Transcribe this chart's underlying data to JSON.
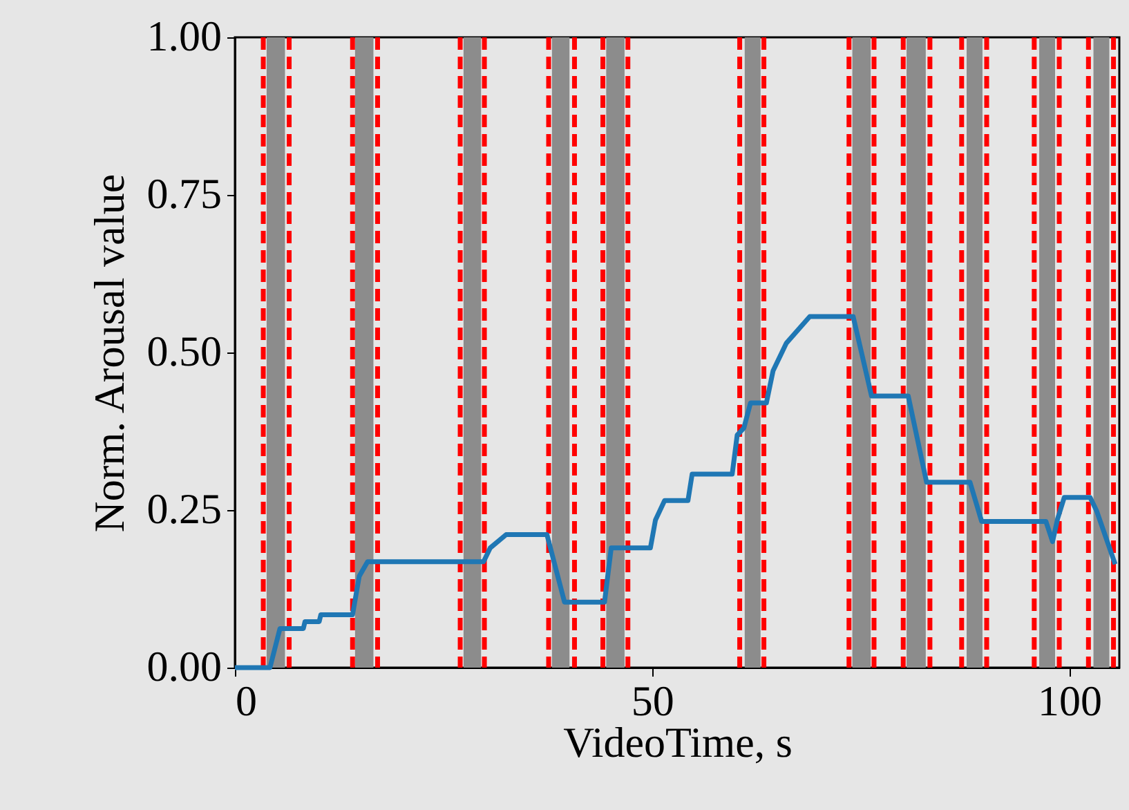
{
  "chart_data": {
    "type": "line",
    "xlabel": "VideoTime, s",
    "ylabel": "Norm. Arousal value",
    "x": [
      0,
      4.2,
      5.4,
      8.2,
      8.4,
      10.1,
      10.3,
      14.1,
      14.9,
      15.9,
      29.8,
      30.6,
      32.5,
      37.4,
      39.5,
      44.3,
      45.1,
      49.8,
      50.4,
      51.5,
      52.1,
      54.3,
      54.8,
      59.6,
      60.2,
      61.0,
      61.8,
      63.7,
      64.5,
      66.1,
      68.9,
      74.1,
      76.3,
      80.7,
      82.9,
      88.1,
      89.5,
      97.2,
      98.0,
      98.6,
      99.4,
      102.5,
      103.3,
      105.5
    ],
    "series": [
      {
        "color": "#1f77b4",
        "values": [
          0,
          0,
          0.062,
          0.062,
          0.073,
          0.073,
          0.084,
          0.084,
          0.145,
          0.168,
          0.168,
          0.19,
          0.211,
          0.211,
          0.104,
          0.104,
          0.19,
          0.19,
          0.234,
          0.265,
          0.265,
          0.265,
          0.307,
          0.307,
          0.369,
          0.38,
          0.42,
          0.42,
          0.471,
          0.515,
          0.557,
          0.557,
          0.431,
          0.431,
          0.294,
          0.294,
          0.232,
          0.232,
          0.2,
          0.236,
          0.27,
          0.27,
          0.248,
          0.164
        ]
      }
    ],
    "xlim": [
      0,
      106
    ],
    "ylim": [
      0,
      1
    ],
    "xticks": [
      0,
      50,
      100
    ],
    "yticks": [
      {
        "value": 0,
        "label": "0.00"
      },
      {
        "value": 0.25,
        "label": "0.25"
      },
      {
        "value": 0.5,
        "label": "0.50"
      },
      {
        "value": 0.75,
        "label": "0.75"
      },
      {
        "value": 1,
        "label": "1.00"
      }
    ],
    "grid": false,
    "line_style": "solid",
    "bands": [
      {
        "axis": "x",
        "from": 3.8,
        "to": 6.0,
        "color": "#8c8c8c"
      },
      {
        "axis": "x",
        "from": 14.4,
        "to": 16.6,
        "color": "#8c8c8c"
      },
      {
        "axis": "x",
        "from": 27.4,
        "to": 29.5,
        "color": "#8c8c8c"
      },
      {
        "axis": "x",
        "from": 38.0,
        "to": 40.1,
        "color": "#8c8c8c"
      },
      {
        "axis": "x",
        "from": 44.5,
        "to": 46.7,
        "color": "#8c8c8c"
      },
      {
        "axis": "x",
        "from": 61.1,
        "to": 63.0,
        "color": "#8c8c8c"
      },
      {
        "axis": "x",
        "from": 74.0,
        "to": 76.2,
        "color": "#8c8c8c"
      },
      {
        "axis": "x",
        "from": 80.5,
        "to": 82.8,
        "color": "#8c8c8c"
      },
      {
        "axis": "x",
        "from": 87.7,
        "to": 89.6,
        "color": "#8c8c8c"
      },
      {
        "axis": "x",
        "from": 96.4,
        "to": 98.3,
        "color": "#8c8c8c"
      },
      {
        "axis": "x",
        "from": 102.9,
        "to": 104.8,
        "color": "#8c8c8c"
      }
    ],
    "ref_lines": [
      {
        "axis": "x",
        "value": 3.4,
        "color": "#ff0000",
        "line_style": "dashed"
      },
      {
        "axis": "x",
        "value": 6.5,
        "color": "#ff0000",
        "line_style": "dashed"
      },
      {
        "axis": "x",
        "value": 14.1,
        "color": "#ff0000",
        "line_style": "dashed"
      },
      {
        "axis": "x",
        "value": 17.1,
        "color": "#ff0000",
        "line_style": "dashed"
      },
      {
        "axis": "x",
        "value": 27.0,
        "color": "#ff0000",
        "line_style": "dashed"
      },
      {
        "axis": "x",
        "value": 29.9,
        "color": "#ff0000",
        "line_style": "dashed"
      },
      {
        "axis": "x",
        "value": 37.6,
        "color": "#ff0000",
        "line_style": "dashed"
      },
      {
        "axis": "x",
        "value": 40.7,
        "color": "#ff0000",
        "line_style": "dashed"
      },
      {
        "axis": "x",
        "value": 44.1,
        "color": "#ff0000",
        "line_style": "dashed"
      },
      {
        "axis": "x",
        "value": 47.1,
        "color": "#ff0000",
        "line_style": "dashed"
      },
      {
        "axis": "x",
        "value": 60.5,
        "color": "#ff0000",
        "line_style": "dashed"
      },
      {
        "axis": "x",
        "value": 63.4,
        "color": "#ff0000",
        "line_style": "dashed"
      },
      {
        "axis": "x",
        "value": 73.6,
        "color": "#ff0000",
        "line_style": "dashed"
      },
      {
        "axis": "x",
        "value": 76.6,
        "color": "#ff0000",
        "line_style": "dashed"
      },
      {
        "axis": "x",
        "value": 80.1,
        "color": "#ff0000",
        "line_style": "dashed"
      },
      {
        "axis": "x",
        "value": 83.3,
        "color": "#ff0000",
        "line_style": "dashed"
      },
      {
        "axis": "x",
        "value": 87.1,
        "color": "#ff0000",
        "line_style": "dashed"
      },
      {
        "axis": "x",
        "value": 90.1,
        "color": "#ff0000",
        "line_style": "dashed"
      },
      {
        "axis": "x",
        "value": 95.8,
        "color": "#ff0000",
        "line_style": "dashed"
      },
      {
        "axis": "x",
        "value": 98.8,
        "color": "#ff0000",
        "line_style": "dashed"
      },
      {
        "axis": "x",
        "value": 102.3,
        "color": "#ff0000",
        "line_style": "dashed"
      },
      {
        "axis": "x",
        "value": 105.3,
        "color": "#ff0000",
        "line_style": "dashed"
      }
    ]
  }
}
